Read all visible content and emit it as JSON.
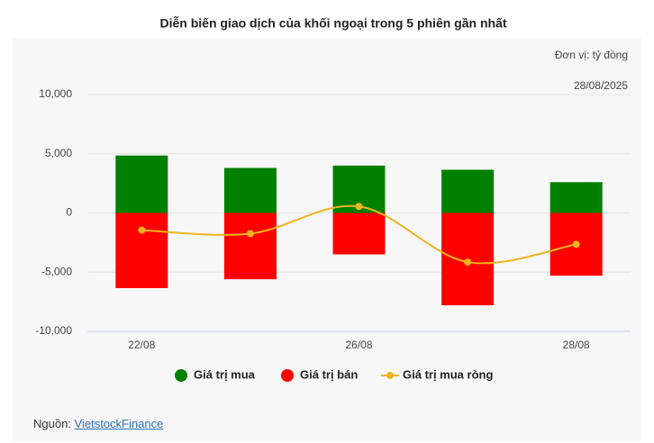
{
  "chart_data": {
    "type": "bar",
    "title": "Diễn biến giao dịch của khối ngoại trong 5 phiên gần nhất",
    "unit_note": "Đơn vị: tỷ đồng",
    "date_note": "28/08/2025",
    "categories": [
      "22/08",
      null,
      "26/08",
      null,
      "28/08"
    ],
    "series": [
      {
        "name": "Giá trị mua",
        "type": "bar",
        "color": "#008000",
        "values": [
          4850,
          3800,
          4000,
          3650,
          2600
        ]
      },
      {
        "name": "Giá trị bán",
        "type": "bar",
        "color": "#ff0000",
        "values": [
          -6350,
          -5600,
          -3500,
          -7800,
          -5300
        ]
      },
      {
        "name": "Giá trị mua ròng",
        "type": "line",
        "color": "#f0b41e",
        "values": [
          -1450,
          -1750,
          550,
          -4150,
          -2650
        ]
      }
    ],
    "ylim": [
      -10000,
      10000
    ],
    "yticks": [
      {
        "value": -10000,
        "label": "-10,000"
      },
      {
        "value": -5000,
        "label": "-5,000"
      },
      0,
      {
        "value": 5000,
        "label": "5,000"
      },
      {
        "value": 10000,
        "label": "10,000"
      }
    ],
    "grid": true
  },
  "source": {
    "label": "Nguồn:",
    "link": "VietstockFinance"
  }
}
